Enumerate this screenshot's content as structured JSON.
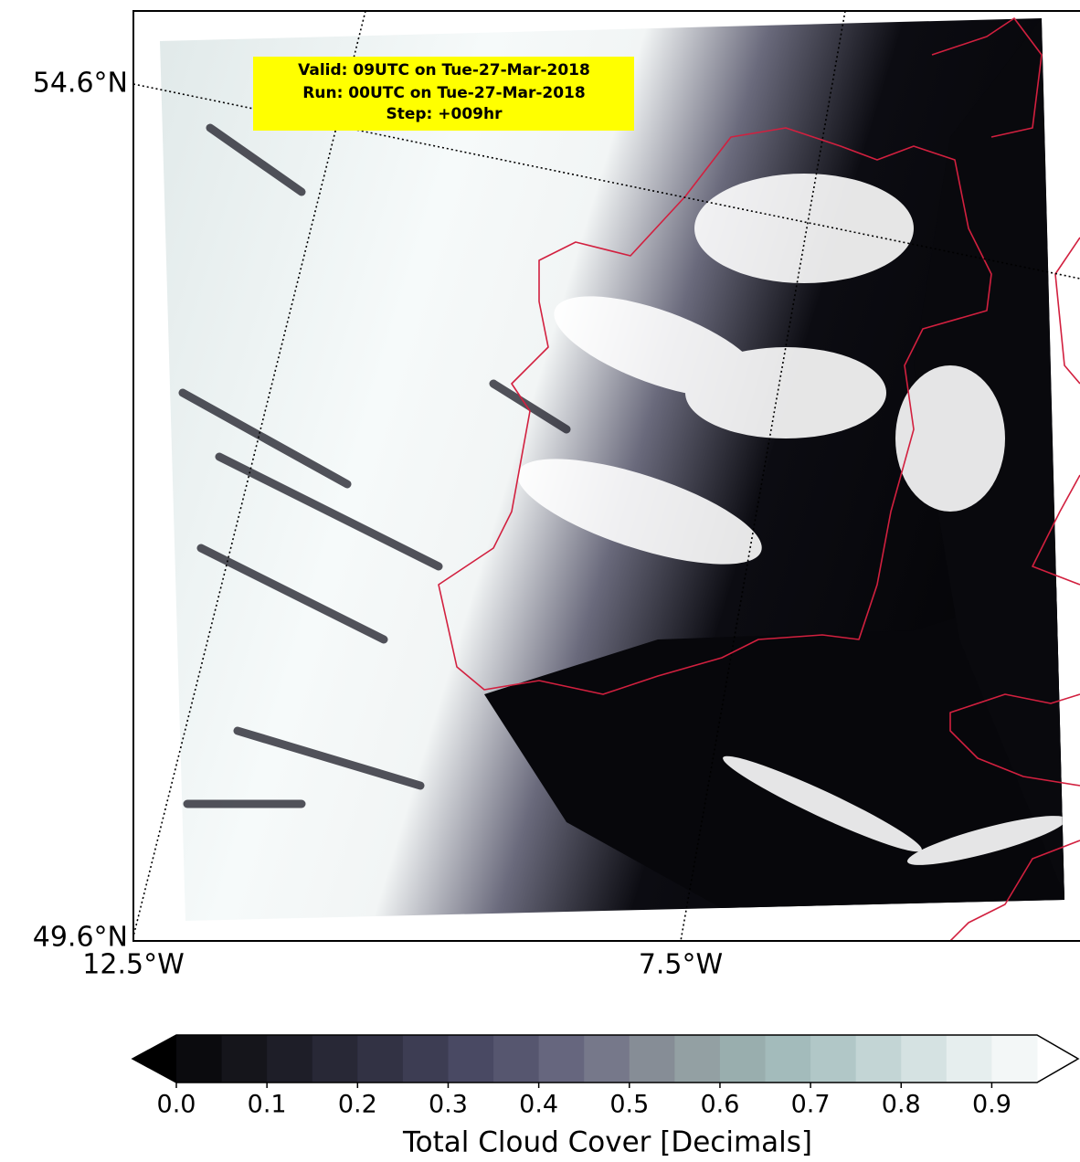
{
  "annotation": {
    "lines": [
      "Valid: 09UTC on Tue-27-Mar-2018",
      "Run: 00UTC on Tue-27-Mar-2018",
      "Step: +009hr"
    ],
    "color": "#ffff00"
  },
  "lat_labels": [
    "54.6°N",
    "49.6°N"
  ],
  "lon_labels": [
    "12.5°W",
    "7.5°W"
  ],
  "colorbar": {
    "label": "Total Cloud Cover [Decimals]",
    "lim": [
      0,
      0.95
    ],
    "ticks": [
      {
        "value": 0,
        "label": "0.0"
      },
      {
        "value": 0.1,
        "label": "0.1"
      },
      {
        "value": 0.2,
        "label": "0.2"
      },
      {
        "value": 0.3,
        "label": "0.3"
      },
      {
        "value": 0.4,
        "label": "0.4"
      },
      {
        "value": 0.5,
        "label": "0.5"
      },
      {
        "value": 0.6,
        "label": "0.6"
      },
      {
        "value": 0.7,
        "label": "0.7"
      },
      {
        "value": 0.8,
        "label": "0.8"
      },
      {
        "value": 0.9,
        "label": "0.9"
      }
    ],
    "colors": [
      "#0b0b0e",
      "#15151b",
      "#1e1e28",
      "#282836",
      "#323244",
      "#3d3d53",
      "#494963",
      "#56566f",
      "#66667e",
      "#76788a",
      "#868d96",
      "#93a0a3",
      "#99aeae",
      "#a3bbbb",
      "#b1c7c7",
      "#c3d5d5",
      "#d5e2e2",
      "#e6eeee",
      "#f3f7f7"
    ],
    "under_color": "#000000",
    "over_color": "#ffffff"
  }
}
